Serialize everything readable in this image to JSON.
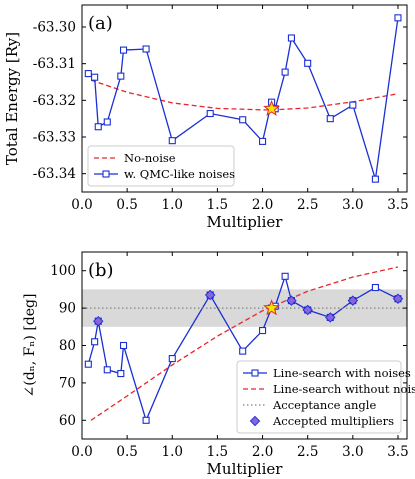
{
  "chart_data": [
    {
      "type": "line",
      "panel_label": "(a)",
      "xlabel": "Multiplier",
      "ylabel": "Total Energy [Ry]",
      "xlim": [
        0.0,
        3.6
      ],
      "ylim": [
        -63.345,
        -63.294
      ],
      "xticks": [
        0.0,
        0.5,
        1.0,
        1.5,
        2.0,
        2.5,
        3.0,
        3.5
      ],
      "xtick_labels": [
        "0.0",
        "0.5",
        "1.0",
        "1.5",
        "2.0",
        "2.5",
        "3.0",
        "3.5"
      ],
      "yticks": [
        -63.34,
        -63.33,
        -63.32,
        -63.31,
        -63.3
      ],
      "ytick_labels": [
        "-63.34",
        "-63.33",
        "-63.32",
        "-63.31",
        "-63.30"
      ],
      "legend_position": "lower-left",
      "series": [
        {
          "name": "No-noise",
          "kind": "curve",
          "color": "#e8262a",
          "dash": "dashed",
          "x": [
            0.1,
            0.5,
            1.0,
            1.5,
            2.0,
            2.1,
            2.5,
            3.0,
            3.5
          ],
          "y": [
            -63.3145,
            -63.3178,
            -63.3207,
            -63.3222,
            -63.3226,
            -63.3226,
            -63.3221,
            -63.3204,
            -63.3182
          ]
        },
        {
          "name": "w. QMC-like noises",
          "kind": "markers-line",
          "color": "#1a2fd4",
          "marker": "square-open",
          "x": [
            0.07,
            0.14,
            0.18,
            0.28,
            0.43,
            0.46,
            0.71,
            1.0,
            1.42,
            1.78,
            2.0,
            2.1,
            2.14,
            2.25,
            2.32,
            2.5,
            2.75,
            3.0,
            3.25,
            3.5
          ],
          "y": [
            -63.3127,
            -63.3137,
            -63.3272,
            -63.3259,
            -63.3134,
            -63.3063,
            -63.306,
            -63.331,
            -63.3236,
            -63.3253,
            -63.3312,
            -63.3205,
            -63.3223,
            -63.3123,
            -63.303,
            -63.3099,
            -63.325,
            -63.3213,
            -63.3415,
            -63.2975
          ]
        }
      ],
      "highlight": {
        "x": 2.1,
        "y": -63.3223,
        "marker": "star",
        "color": "#f5e400",
        "edge_color": "#e8262a"
      }
    },
    {
      "type": "line",
      "panel_label": "(b)",
      "xlabel": "Multiplier",
      "ylabel": "∠(dₙ, Fₙ) [deg]",
      "xlim": [
        0.0,
        3.6
      ],
      "ylim": [
        55,
        105
      ],
      "xticks": [
        0.0,
        0.5,
        1.0,
        1.5,
        2.0,
        2.5,
        3.0,
        3.5
      ],
      "xtick_labels": [
        "0.0",
        "0.5",
        "1.0",
        "1.5",
        "2.0",
        "2.5",
        "3.0",
        "3.5"
      ],
      "yticks": [
        60,
        70,
        80,
        90,
        100
      ],
      "ytick_labels": [
        "60",
        "70",
        "80",
        "90",
        "100"
      ],
      "shaded_band": {
        "from": 85,
        "to": 95,
        "color": "#d9d9d9"
      },
      "legend_position": "lower-right",
      "series": [
        {
          "name": "Line-search with noises",
          "kind": "markers-line",
          "color": "#1a2fd4",
          "marker": "square-open",
          "x": [
            0.07,
            0.14,
            0.18,
            0.28,
            0.43,
            0.46,
            0.71,
            1.0,
            1.42,
            1.78,
            2.0,
            2.1,
            2.14,
            2.25,
            2.32,
            2.5,
            2.75,
            3.0,
            3.25,
            3.5
          ],
          "y": [
            75.0,
            81.0,
            86.5,
            73.5,
            72.5,
            80.0,
            60.0,
            76.5,
            93.5,
            78.5,
            84.0,
            90.0,
            90.5,
            98.5,
            92.0,
            89.5,
            87.5,
            92.0,
            95.5,
            92.5
          ]
        },
        {
          "name": "Line-search without noise",
          "kind": "curve",
          "color": "#e8262a",
          "dash": "dashed",
          "x": [
            0.1,
            0.5,
            1.0,
            1.5,
            2.0,
            2.5,
            3.0,
            3.5
          ],
          "y": [
            60.0,
            66.5,
            74.8,
            82.5,
            89.3,
            94.5,
            98.3,
            101.0
          ]
        },
        {
          "name": "Acceptance angle",
          "kind": "hline",
          "color": "#808080",
          "dash": "dotted",
          "y": 90
        },
        {
          "name": "Accepted multipliers",
          "kind": "markers",
          "color": "#8a63e0",
          "edge_color": "#1a2fd4",
          "marker": "diamond",
          "x": [
            0.18,
            1.42,
            2.32,
            2.5,
            2.75,
            3.0,
            3.5
          ],
          "y": [
            86.5,
            93.5,
            92.0,
            89.5,
            87.5,
            92.0,
            92.5
          ]
        }
      ],
      "highlight": {
        "x": 2.1,
        "y": 90.0,
        "marker": "star",
        "color": "#f5e400",
        "edge_color": "#e8262a"
      }
    }
  ]
}
